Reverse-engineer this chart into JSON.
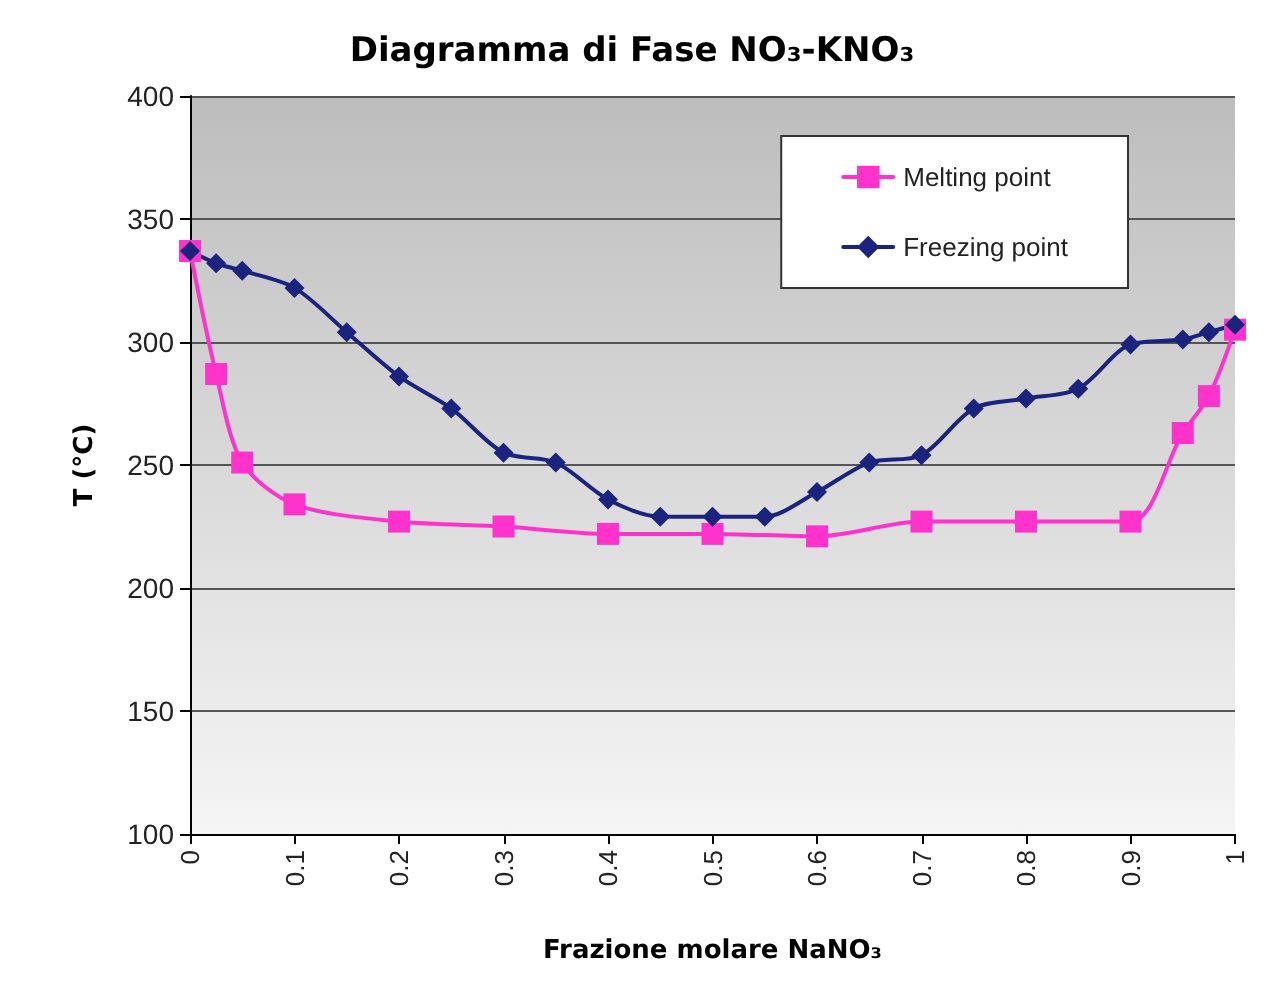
{
  "chart_data": {
    "type": "line",
    "title": "Diagramma di Fase NO₃-KNO₃",
    "xlabel": "Frazione molare NaNO₃",
    "ylabel": "T (°C)",
    "xlim": [
      0,
      1
    ],
    "xticks": [
      0,
      0.1,
      0.2,
      0.3,
      0.4,
      0.5,
      0.6,
      0.7,
      0.8,
      0.9,
      1
    ],
    "ylim": [
      100,
      400
    ],
    "yticks": [
      100,
      150,
      200,
      250,
      300,
      350,
      400
    ],
    "grid": "y",
    "legend": "top right",
    "series": [
      {
        "name": "Melting point",
        "color": "#ff33cc",
        "marker": "square",
        "x": [
          0,
          0.025,
          0.05,
          0.1,
          0.2,
          0.3,
          0.4,
          0.5,
          0.6,
          0.7,
          0.8,
          0.9,
          0.95,
          0.975,
          1
        ],
        "values": [
          337,
          287,
          251,
          234,
          227,
          225,
          222,
          222,
          221,
          227,
          227,
          227,
          263,
          278,
          305
        ]
      },
      {
        "name": "Freezing point",
        "color": "#1a237e",
        "marker": "diamond",
        "x": [
          0,
          0.025,
          0.05,
          0.1,
          0.15,
          0.2,
          0.25,
          0.3,
          0.35,
          0.4,
          0.45,
          0.5,
          0.55,
          0.6,
          0.65,
          0.7,
          0.75,
          0.8,
          0.85,
          0.9,
          0.95,
          0.975,
          1
        ],
        "values": [
          337,
          332,
          329,
          322,
          304,
          286,
          273,
          255,
          251,
          236,
          229,
          229,
          229,
          239,
          251,
          254,
          273,
          277,
          281,
          299,
          301,
          304,
          307
        ]
      }
    ]
  }
}
